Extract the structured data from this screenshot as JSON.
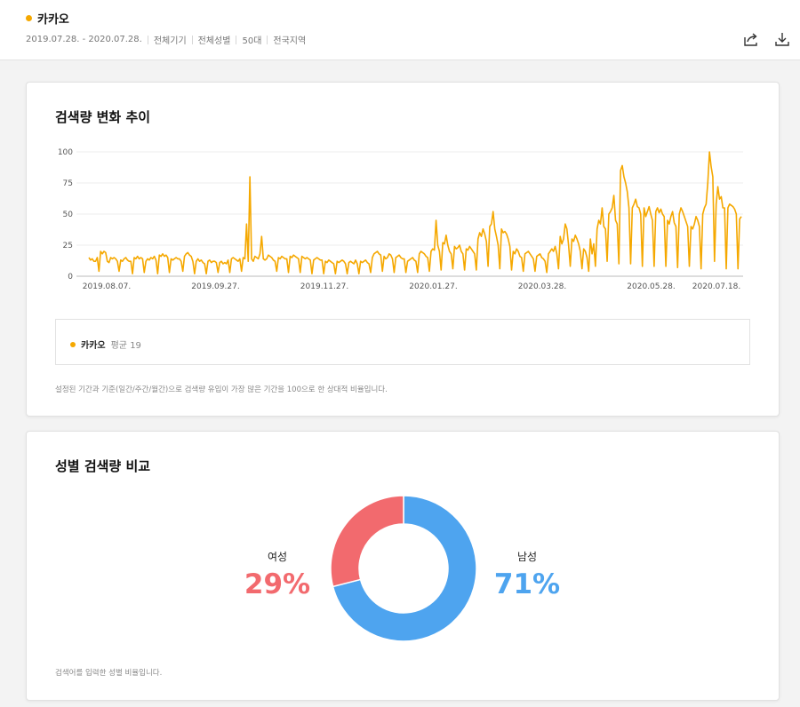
{
  "header": {
    "keyword": "카카오",
    "keyword_color": "#f5a800",
    "filters": [
      "2019.07.28. - 2020.07.28.",
      "전체기기",
      "전체성별",
      "50대",
      "전국지역"
    ],
    "share_icon": "share-icon",
    "download_icon": "download-icon"
  },
  "trend": {
    "title": "검색량 변화 추이",
    "legend_name": "카카오",
    "legend_avg": "평균 19",
    "note": "설정된 기간과 기준(일간/주간/월간)으로 검색량 유입이 가장 많은 기간을 100으로 한 상대적 비율입니다."
  },
  "gender": {
    "title": "성별 검색량 비교",
    "female_label": "여성",
    "male_label": "남성",
    "female_pct": "29%",
    "male_pct": "71%",
    "female_color": "#f26a6e",
    "male_color": "#4ea4ef",
    "note": "검색어를 입력한 성별 비율입니다."
  },
  "chart_data": [
    {
      "type": "line",
      "title": "검색량 변화 추이",
      "x_tick_labels": [
        "2019.08.07.",
        "2019.09.27.",
        "2019.11.27.",
        "2020.01.27.",
        "2020.03.28.",
        "2020.05.28.",
        "2020.07.18."
      ],
      "x_range": [
        "2019.07.28.",
        "2020.07.28."
      ],
      "y_ticks": [
        0,
        25,
        50,
        75,
        100
      ],
      "ylim": [
        0,
        100
      ],
      "grid": true,
      "color": "#f5a800",
      "series": [
        {
          "name": "카카오",
          "values": [
            15,
            13,
            14,
            12,
            12,
            15,
            4,
            20,
            18,
            20,
            19,
            12,
            11,
            15,
            14,
            15,
            14,
            12,
            4,
            13,
            12,
            14,
            15,
            13,
            12,
            12,
            2,
            15,
            14,
            16,
            14,
            15,
            14,
            3,
            12,
            14,
            13,
            15,
            14,
            16,
            13,
            2,
            17,
            16,
            18,
            16,
            17,
            15,
            3,
            14,
            13,
            14,
            15,
            14,
            14,
            12,
            4,
            16,
            18,
            19,
            17,
            16,
            12,
            2,
            12,
            14,
            12,
            13,
            11,
            10,
            2,
            12,
            13,
            11,
            12,
            12,
            11,
            3,
            11,
            12,
            10,
            11,
            10,
            13,
            3,
            14,
            15,
            14,
            13,
            12,
            14,
            4,
            15,
            14,
            42,
            12,
            80,
            14,
            12,
            16,
            15,
            14,
            18,
            32,
            14,
            13,
            14,
            17,
            16,
            15,
            13,
            12,
            4,
            15,
            14,
            16,
            15,
            14,
            14,
            3,
            16,
            15,
            17,
            16,
            15,
            14,
            3,
            16,
            15,
            14,
            15,
            14,
            13,
            2,
            13,
            14,
            15,
            14,
            13,
            13,
            2,
            12,
            11,
            13,
            12,
            11,
            10,
            2,
            12,
            11,
            12,
            13,
            12,
            10,
            2,
            11,
            12,
            11,
            10,
            13,
            10,
            2,
            12,
            11,
            12,
            13,
            11,
            10,
            3,
            15,
            18,
            19,
            20,
            18,
            17,
            4,
            16,
            14,
            15,
            18,
            17,
            14,
            3,
            15,
            16,
            17,
            15,
            14,
            14,
            3,
            12,
            13,
            14,
            15,
            13,
            12,
            3,
            18,
            20,
            19,
            18,
            16,
            15,
            4,
            20,
            22,
            21,
            45,
            25,
            20,
            5,
            27,
            26,
            33,
            25,
            20,
            18,
            6,
            24,
            22,
            23,
            25,
            20,
            18,
            5,
            22,
            21,
            24,
            22,
            20,
            18,
            5,
            30,
            35,
            32,
            38,
            34,
            28,
            8,
            40,
            42,
            52,
            38,
            32,
            25,
            6,
            38,
            35,
            36,
            34,
            30,
            24,
            5,
            20,
            18,
            22,
            20,
            16,
            15,
            4,
            18,
            19,
            20,
            18,
            16,
            14,
            4,
            16,
            17,
            18,
            15,
            14,
            12,
            3,
            18,
            20,
            22,
            20,
            24,
            18,
            6,
            32,
            26,
            30,
            42,
            38,
            25,
            8,
            30,
            28,
            33,
            30,
            26,
            20,
            6,
            22,
            20,
            15,
            4,
            30,
            18,
            26,
            8,
            38,
            45,
            42,
            55,
            40,
            38,
            12,
            50,
            52,
            55,
            65,
            45,
            42,
            10,
            85,
            89,
            80,
            75,
            68,
            55,
            10,
            55,
            58,
            62,
            56,
            55,
            50,
            8,
            55,
            48,
            52,
            56,
            50,
            45,
            8,
            52,
            55,
            51,
            54,
            50,
            48,
            8,
            45,
            42,
            48,
            52,
            43,
            40,
            7,
            50,
            55,
            52,
            48,
            44,
            40,
            8,
            40,
            38,
            42,
            48,
            45,
            40,
            6,
            50,
            55,
            58,
            75,
            100,
            88,
            80,
            12,
            58,
            72,
            62,
            64,
            55,
            55,
            6,
            55,
            58,
            57,
            56,
            54,
            50,
            6,
            46,
            48
          ]
        }
      ]
    },
    {
      "type": "pie",
      "title": "성별 검색량 비교",
      "categories": [
        "여성",
        "남성"
      ],
      "values": [
        29,
        71
      ],
      "colors": [
        "#f26a6e",
        "#4ea4ef"
      ],
      "donut": true
    }
  ]
}
